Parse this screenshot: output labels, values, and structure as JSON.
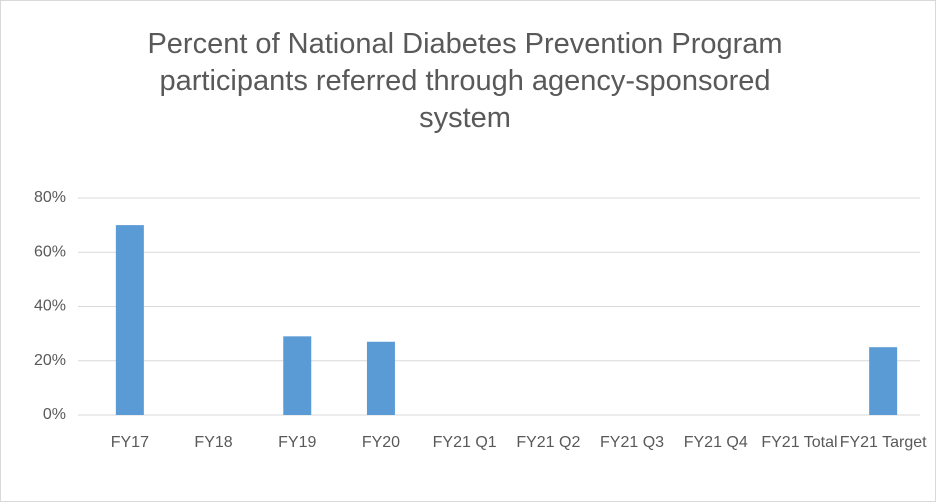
{
  "chart_data": {
    "type": "bar",
    "title": "Percent of National Diabetes Prevention Program participants referred through agency-sponsored system",
    "categories": [
      "FY17",
      "FY18",
      "FY19",
      "FY20",
      "FY21 Q1",
      "FY21 Q2",
      "FY21 Q3",
      "FY21 Q4",
      "FY21 Total",
      "FY21 Target"
    ],
    "values": [
      70,
      null,
      29,
      27,
      null,
      null,
      null,
      null,
      null,
      25
    ],
    "color": "#5b9bd5",
    "ylim": [
      0,
      80
    ],
    "yticks": [
      {
        "value": 0,
        "label": "0%"
      },
      {
        "value": 20,
        "label": "20%"
      },
      {
        "value": 40,
        "label": "40%"
      },
      {
        "value": 60,
        "label": "60%"
      },
      {
        "value": 80,
        "label": "80%"
      }
    ],
    "grid": true
  }
}
